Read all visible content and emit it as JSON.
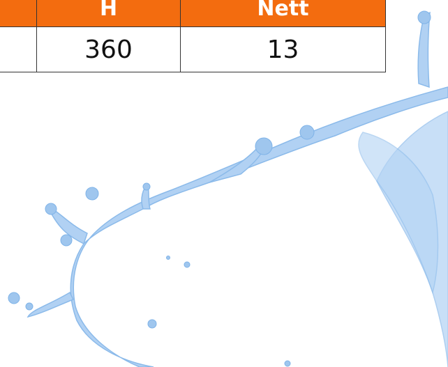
{
  "table": {
    "header": [
      "H",
      "Nett"
    ],
    "rows": [
      [
        "360",
        "13"
      ]
    ]
  }
}
